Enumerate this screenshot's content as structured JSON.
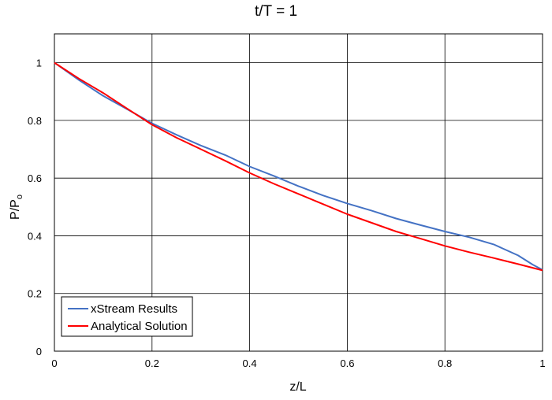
{
  "chart_data": {
    "type": "line",
    "title": "t/T = 1",
    "xlabel": "z/L",
    "ylabel_main": "P/P",
    "ylabel_sub": "o",
    "xlim": [
      0,
      1
    ],
    "ylim": [
      0,
      1.1
    ],
    "x_ticks": [
      "0",
      "0.2",
      "0.4",
      "0.6",
      "0.8",
      "1"
    ],
    "y_ticks": [
      "0",
      "0.2",
      "0.4",
      "0.6",
      "0.8",
      "1"
    ],
    "grid": true,
    "legend_position": "bottom-left",
    "series": [
      {
        "name": "xStream Results",
        "color": "#4472C4",
        "x": [
          0,
          0.05,
          0.1,
          0.15,
          0.2,
          0.25,
          0.3,
          0.35,
          0.4,
          0.45,
          0.5,
          0.55,
          0.6,
          0.65,
          0.7,
          0.75,
          0.8,
          0.85,
          0.9,
          0.95,
          0.98,
          1.0
        ],
        "y": [
          1.0,
          0.94,
          0.885,
          0.838,
          0.79,
          0.75,
          0.713,
          0.68,
          0.64,
          0.607,
          0.572,
          0.54,
          0.512,
          0.487,
          0.46,
          0.437,
          0.415,
          0.395,
          0.37,
          0.332,
          0.3,
          0.282
        ]
      },
      {
        "name": "Analytical Solution",
        "color": "#FF0000",
        "x": [
          0,
          0.05,
          0.1,
          0.15,
          0.2,
          0.25,
          0.3,
          0.35,
          0.4,
          0.45,
          0.5,
          0.55,
          0.6,
          0.65,
          0.7,
          0.75,
          0.8,
          0.85,
          0.9,
          0.95,
          1.0
        ],
        "y": [
          1.0,
          0.945,
          0.895,
          0.84,
          0.785,
          0.74,
          0.7,
          0.66,
          0.618,
          0.58,
          0.545,
          0.51,
          0.475,
          0.445,
          0.415,
          0.39,
          0.365,
          0.343,
          0.323,
          0.302,
          0.28
        ]
      }
    ]
  }
}
